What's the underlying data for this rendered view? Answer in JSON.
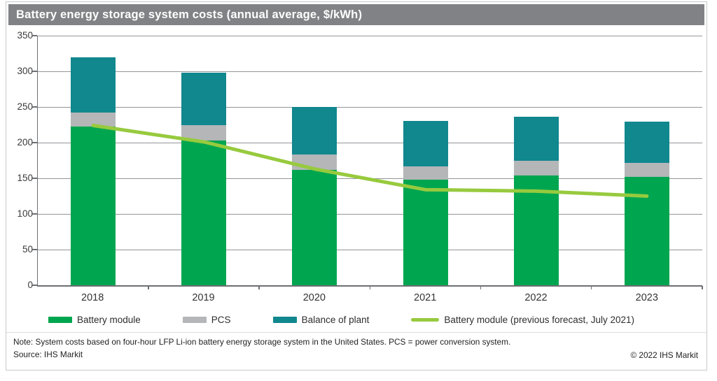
{
  "title": "Battery energy storage system costs (annual average, $/kWh)",
  "chart_data": {
    "type": "bar",
    "stacked": true,
    "categories": [
      "2018",
      "2019",
      "2020",
      "2021",
      "2022",
      "2023"
    ],
    "series": [
      {
        "name": "Battery module",
        "type": "bar",
        "color": "#00a64f",
        "values": [
          223,
          203,
          162,
          148,
          154,
          152
        ]
      },
      {
        "name": "PCS",
        "type": "bar",
        "color": "#b4b6b8",
        "values": [
          19,
          22,
          21,
          19,
          21,
          20
        ]
      },
      {
        "name": "Balance of plant",
        "type": "bar",
        "color": "#11878e",
        "values": [
          78,
          73,
          67,
          63,
          61,
          57
        ]
      },
      {
        "name": "Battery module (previous forecast, July 2021)",
        "type": "line",
        "color": "#97ca3e",
        "values": [
          224,
          201,
          163,
          134,
          132,
          125
        ]
      }
    ],
    "totals": [
      320,
      298,
      250,
      230,
      236,
      229
    ],
    "ylim": [
      0,
      350
    ],
    "ytick_step": 50,
    "grid": true,
    "legend_position": "bottom"
  },
  "footer": {
    "note": "Note: System costs based on four-hour LFP Li-ion battery energy storage system in the United States. PCS = power conversion system.",
    "source": "Source: IHS Markit",
    "copyright": "© 2022 IHS Markit"
  },
  "colors": {
    "title_bar_bg": "#808285",
    "title_text": "#ffffff",
    "grid_line": "#939598",
    "axis_line": "#6d6f72",
    "figure_border": "#c7c9cb"
  }
}
